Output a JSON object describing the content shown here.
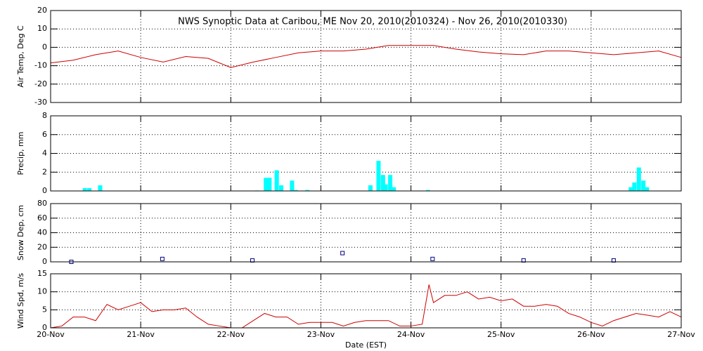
{
  "title": "NWS Synoptic Data at Caribou, ME   Nov 20, 2010(2010324) - Nov 26, 2010(2010330)",
  "chart_data": [
    {
      "type": "line",
      "y_label": "Air Temp, Deg C",
      "color": "#cc0000",
      "grid": true,
      "xlim": [
        0,
        7
      ],
      "ylim": [
        -30,
        20
      ],
      "yticks": [
        -30,
        -20,
        -10,
        0,
        10,
        20
      ],
      "x": [
        0,
        0.25,
        0.5,
        0.75,
        1,
        1.25,
        1.5,
        1.75,
        2,
        2.25,
        2.5,
        2.75,
        3,
        3.25,
        3.5,
        3.75,
        4,
        4.25,
        4.5,
        4.75,
        5,
        5.25,
        5.5,
        5.75,
        6,
        6.25,
        6.5,
        6.75,
        7
      ],
      "values": [
        -8.5,
        -7,
        -4,
        -2,
        -5.5,
        -8,
        -5,
        -6,
        -11,
        -8,
        -5.5,
        -3,
        -2,
        -2,
        -1,
        1,
        1,
        1,
        -1,
        -2.5,
        -3.5,
        -4,
        -2,
        -2,
        -3,
        -4,
        -3,
        -2,
        -5.5
      ]
    },
    {
      "type": "bar",
      "y_label": "Precip, mm",
      "color": "#00ffff",
      "grid": true,
      "xlim": [
        0,
        7
      ],
      "ylim": [
        0,
        8
      ],
      "yticks": [
        0,
        2,
        4,
        6,
        8
      ],
      "x": [
        0.38,
        0.43,
        0.55,
        2.29,
        2.39,
        2.43,
        2.51,
        2.56,
        2.68,
        2.72,
        2.85,
        3.55,
        3.64,
        3.69,
        3.72,
        3.77,
        3.81,
        4.19,
        6.44,
        6.48,
        6.53,
        6.58,
        6.62
      ],
      "values": [
        0.3,
        0.3,
        0.6,
        0.05,
        1.4,
        1.4,
        2.2,
        0.6,
        1.1,
        0.1,
        0.1,
        0.6,
        3.2,
        1.7,
        0.7,
        1.7,
        0.4,
        0.1,
        0.4,
        0.9,
        2.5,
        1.1,
        0.4
      ]
    },
    {
      "type": "scatter",
      "y_label": "Snow Dep, cm",
      "color": "#000080",
      "grid": true,
      "xlim": [
        0,
        7
      ],
      "ylim": [
        0,
        80
      ],
      "yticks": [
        0,
        20,
        40,
        60,
        80
      ],
      "x": [
        0.23,
        1.24,
        2.24,
        3.24,
        4.24,
        5.25,
        6.25
      ],
      "values": [
        0,
        4,
        2,
        12,
        4,
        2,
        2
      ]
    },
    {
      "type": "line",
      "y_label": "Wind Spd, m/s",
      "x_label": "Date (EST)",
      "color": "#cc0000",
      "grid": true,
      "xlim": [
        0,
        7
      ],
      "ylim": [
        0,
        15
      ],
      "yticks": [
        0,
        5,
        10,
        15
      ],
      "xticks": [
        {
          "value": 0,
          "label": "20-Nov"
        },
        {
          "value": 1,
          "label": "21-Nov"
        },
        {
          "value": 2,
          "label": "22-Nov"
        },
        {
          "value": 3,
          "label": "23-Nov"
        },
        {
          "value": 4,
          "label": "24-Nov"
        },
        {
          "value": 5,
          "label": "25-Nov"
        },
        {
          "value": 6,
          "label": "26-Nov"
        },
        {
          "value": 7,
          "label": "27-Nov"
        }
      ],
      "x": [
        0,
        0.125,
        0.25,
        0.375,
        0.5,
        0.625,
        0.75,
        0.875,
        1,
        1.125,
        1.25,
        1.375,
        1.5,
        1.625,
        1.75,
        1.875,
        2,
        2.125,
        2.25,
        2.375,
        2.5,
        2.625,
        2.75,
        2.875,
        3,
        3.125,
        3.25,
        3.375,
        3.5,
        3.625,
        3.75,
        3.875,
        4,
        4.125,
        4.2,
        4.25,
        4.375,
        4.5,
        4.625,
        4.75,
        4.875,
        5,
        5.125,
        5.25,
        5.375,
        5.5,
        5.625,
        5.75,
        5.875,
        6,
        6.125,
        6.25,
        6.375,
        6.5,
        6.625,
        6.75,
        6.875,
        7
      ],
      "values": [
        0,
        0.5,
        3,
        3,
        2,
        6.5,
        5,
        6,
        7,
        4.5,
        5,
        5,
        5.5,
        3,
        1,
        0.5,
        0,
        0,
        2,
        4,
        3,
        3,
        1,
        1.5,
        1.5,
        1.5,
        0.5,
        1.5,
        2,
        2,
        2,
        0.5,
        0.5,
        1,
        12,
        7,
        9,
        9,
        10,
        8,
        8.5,
        7.5,
        8,
        6,
        6,
        6.5,
        6,
        4,
        3,
        1.5,
        0.5,
        2,
        3,
        4,
        3.5,
        3,
        4.5,
        3
      ]
    }
  ]
}
